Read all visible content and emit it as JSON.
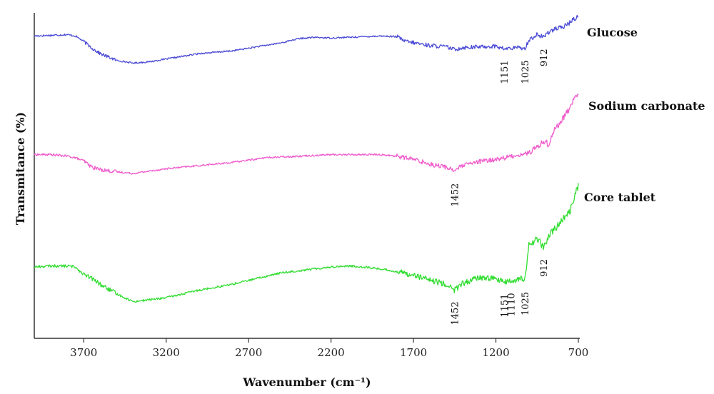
{
  "chart_data": {
    "type": "line",
    "title": "",
    "xlabel": "Wavenumber (cm⁻¹)",
    "ylabel": "Transmitance (%)",
    "xlim": [
      4000,
      700
    ],
    "x_reversed": true,
    "ylim": [
      0,
      100
    ],
    "grid": false,
    "legend": "labels at right end of each trace",
    "x_ticks": [
      3700,
      3200,
      2700,
      2200,
      1700,
      1200,
      700
    ],
    "x_tick_labels": [
      "3700",
      "3200",
      "2700",
      "2200",
      "1700",
      "1200",
      "700"
    ],
    "series": [
      {
        "name": "Glucose",
        "color": "#4a4ad6",
        "points": [
          [
            4000,
            84
          ],
          [
            3900,
            84.5
          ],
          [
            3800,
            85
          ],
          [
            3750,
            84
          ],
          [
            3700,
            80
          ],
          [
            3650,
            75
          ],
          [
            3600,
            71
          ],
          [
            3500,
            66
          ],
          [
            3400,
            64
          ],
          [
            3300,
            65
          ],
          [
            3200,
            67
          ],
          [
            3000,
            71
          ],
          [
            2900,
            72
          ],
          [
            2800,
            73
          ],
          [
            2700,
            75
          ],
          [
            2500,
            79
          ],
          [
            2400,
            82
          ],
          [
            2300,
            83
          ],
          [
            2200,
            82.5
          ],
          [
            2100,
            83
          ],
          [
            2000,
            83.5
          ],
          [
            1900,
            84
          ],
          [
            1800,
            83.5
          ],
          [
            1750,
            80
          ],
          [
            1700,
            79
          ],
          [
            1650,
            78
          ],
          [
            1600,
            77
          ],
          [
            1550,
            76.5
          ],
          [
            1500,
            76
          ],
          [
            1452,
            74
          ],
          [
            1400,
            75.5
          ],
          [
            1300,
            76
          ],
          [
            1200,
            76.5
          ],
          [
            1151,
            74.5
          ],
          [
            1100,
            75
          ],
          [
            1050,
            75.5
          ],
          [
            1025,
            74.5
          ],
          [
            1000,
            81
          ],
          [
            950,
            85
          ],
          [
            912,
            83
          ],
          [
            880,
            87
          ],
          [
            850,
            89
          ],
          [
            800,
            90
          ],
          [
            750,
            94
          ],
          [
            720,
            97
          ],
          [
            700,
            99
          ]
        ]
      },
      {
        "name": "Sodium carbonate",
        "color": "#f05ccc",
        "points": [
          [
            4000,
            47
          ],
          [
            3900,
            47
          ],
          [
            3800,
            46
          ],
          [
            3750,
            45
          ],
          [
            3700,
            43
          ],
          [
            3650,
            39
          ],
          [
            3600,
            37.5
          ],
          [
            3500,
            36
          ],
          [
            3400,
            35
          ],
          [
            3300,
            36.5
          ],
          [
            3200,
            38
          ],
          [
            3000,
            40
          ],
          [
            2900,
            41
          ],
          [
            2800,
            42
          ],
          [
            2700,
            43.5
          ],
          [
            2600,
            45
          ],
          [
            2500,
            45.5
          ],
          [
            2400,
            46
          ],
          [
            2300,
            46.5
          ],
          [
            2200,
            47
          ],
          [
            2100,
            47
          ],
          [
            2000,
            47
          ],
          [
            1900,
            47
          ],
          [
            1800,
            46
          ],
          [
            1700,
            44
          ],
          [
            1600,
            41
          ],
          [
            1500,
            39
          ],
          [
            1452,
            37
          ],
          [
            1400,
            40
          ],
          [
            1300,
            42.5
          ],
          [
            1200,
            44
          ],
          [
            1100,
            46
          ],
          [
            1000,
            48
          ],
          [
            950,
            52
          ],
          [
            900,
            56
          ],
          [
            880,
            53
          ],
          [
            850,
            62
          ],
          [
            800,
            69
          ],
          [
            750,
            77
          ],
          [
            720,
            84
          ],
          [
            700,
            85
          ]
        ]
      },
      {
        "name": "Core tablet",
        "color": "#33dd33",
        "points": [
          [
            4000,
            30
          ],
          [
            3900,
            30.5
          ],
          [
            3800,
            30.5
          ],
          [
            3750,
            30
          ],
          [
            3700,
            26
          ],
          [
            3650,
            24
          ],
          [
            3600,
            21
          ],
          [
            3500,
            16
          ],
          [
            3400,
            12
          ],
          [
            3300,
            13
          ],
          [
            3200,
            14
          ],
          [
            3100,
            16
          ],
          [
            3000,
            18
          ],
          [
            2900,
            19.5
          ],
          [
            2800,
            21
          ],
          [
            2700,
            23
          ],
          [
            2600,
            25
          ],
          [
            2500,
            27
          ],
          [
            2400,
            28
          ],
          [
            2300,
            29
          ],
          [
            2200,
            30
          ],
          [
            2100,
            30.5
          ],
          [
            2000,
            30
          ],
          [
            1900,
            29
          ],
          [
            1800,
            27.5
          ],
          [
            1700,
            26
          ],
          [
            1600,
            23
          ],
          [
            1500,
            21
          ],
          [
            1452,
            18
          ],
          [
            1400,
            21.5
          ],
          [
            1300,
            24.5
          ],
          [
            1200,
            24
          ],
          [
            1151,
            22
          ],
          [
            1110,
            22.5
          ],
          [
            1050,
            24
          ],
          [
            1025,
            23
          ],
          [
            1000,
            41
          ],
          [
            950,
            45
          ],
          [
            912,
            40
          ],
          [
            880,
            46
          ],
          [
            850,
            49
          ],
          [
            800,
            54
          ],
          [
            750,
            59
          ],
          [
            720,
            68
          ],
          [
            700,
            72
          ]
        ]
      }
    ],
    "annotations": [
      {
        "series": "Glucose",
        "x": 1151,
        "text": "1151"
      },
      {
        "series": "Glucose",
        "x": 1025,
        "text": "1025"
      },
      {
        "series": "Glucose",
        "x": 912,
        "text": "912"
      },
      {
        "series": "Sodium carbonate",
        "x": 1452,
        "text": "1452"
      },
      {
        "series": "Core tablet",
        "x": 1452,
        "text": "1452"
      },
      {
        "series": "Core tablet",
        "x": 1151,
        "text": "1151"
      },
      {
        "series": "Core tablet",
        "x": 1110,
        "text": "1110"
      },
      {
        "series": "Core tablet",
        "x": 1025,
        "text": "1025"
      },
      {
        "series": "Core tablet",
        "x": 912,
        "text": "912"
      }
    ]
  }
}
